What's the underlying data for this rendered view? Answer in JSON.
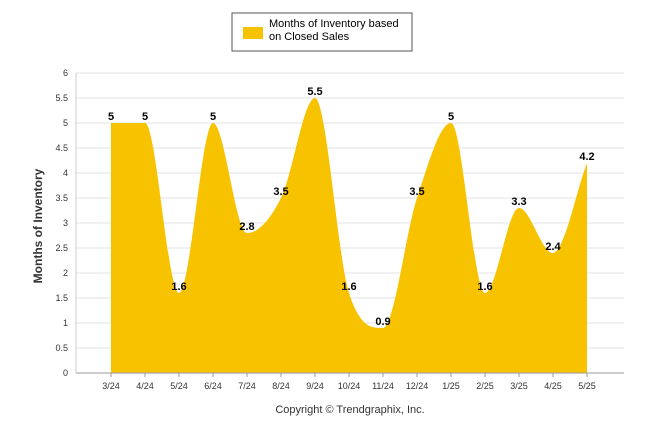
{
  "chart_data": {
    "type": "area",
    "categories": [
      "3/24",
      "4/24",
      "5/24",
      "6/24",
      "7/24",
      "8/24",
      "9/24",
      "10/24",
      "11/24",
      "12/24",
      "1/25",
      "2/25",
      "3/25",
      "4/25",
      "5/25"
    ],
    "series": [
      {
        "name": "Months of Inventory based on Closed Sales",
        "values": [
          5,
          5,
          1.6,
          5,
          2.8,
          3.5,
          5.5,
          1.6,
          0.9,
          3.5,
          5,
          1.6,
          3.3,
          2.4,
          4.2
        ],
        "color": "#F7C200"
      }
    ],
    "legend_lines": [
      "Months of Inventory based",
      "on Closed Sales"
    ],
    "ylabel": "Months of Inventory",
    "xlabel": "",
    "ylim": [
      0,
      6
    ],
    "yticks": [
      "0",
      "0.5",
      "1",
      "1.5",
      "2",
      "2.5",
      "3",
      "3.5",
      "4",
      "4.5",
      "5",
      "5.5",
      "6"
    ],
    "grid": true,
    "legend_position": "top-center"
  },
  "footer": {
    "copyright": "Copyright © Trendgraphix, Inc."
  }
}
